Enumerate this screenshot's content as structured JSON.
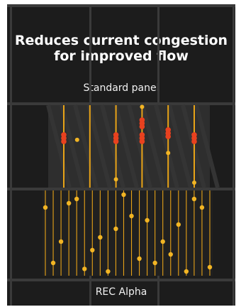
{
  "title": "Reduces current congestion for improved flow",
  "panels": [
    {
      "label": "Standard panel",
      "line_color": "#e8a317",
      "dot_color": "#f2b524",
      "hotspot_color": "#e8411f",
      "busbars": [
        {
          "dots": [
            {
              "t": 0.36,
              "hot": true
            },
            {
              "t": 0.4,
              "hot": true
            },
            {
              "t": 0.44,
              "hot": true
            }
          ]
        },
        {
          "dots": [
            {
              "t": 0.42,
              "hot": false
            }
          ]
        },
        {
          "dots": [
            {
              "t": 0.36,
              "hot": true
            },
            {
              "t": 0.4,
              "hot": true
            },
            {
              "t": 0.44,
              "hot": true
            },
            {
              "t": 0.9,
              "hot": false
            }
          ]
        },
        {
          "dots": [
            {
              "t": 0.02,
              "hot": false
            },
            {
              "t": 0.18,
              "hot": true
            },
            {
              "t": 0.22,
              "hot": true
            },
            {
              "t": 0.26,
              "hot": true
            },
            {
              "t": 0.36,
              "hot": true
            },
            {
              "t": 0.4,
              "hot": true
            },
            {
              "t": 0.44,
              "hot": true
            }
          ]
        },
        {
          "dots": [
            {
              "t": 0.3,
              "hot": true
            },
            {
              "t": 0.34,
              "hot": true
            },
            {
              "t": 0.38,
              "hot": true
            },
            {
              "t": 0.58,
              "hot": false
            }
          ]
        },
        {
          "dots": [
            {
              "t": 0.36,
              "hot": true
            },
            {
              "t": 0.4,
              "hot": true
            },
            {
              "t": 0.44,
              "hot": true
            },
            {
              "t": 0.94,
              "hot": false
            }
          ]
        }
      ]
    },
    {
      "label": "REC Alpha",
      "line_color": "#e8a317",
      "dot_color": "#f2b524",
      "wire_dots": [
        0.2,
        0.85,
        0.6,
        0.15,
        0.1,
        0.92,
        0.7,
        0.55,
        0.95,
        0.45,
        0.05,
        0.3,
        0.8,
        0.35,
        0.85,
        0.6,
        0.75,
        0.4,
        0.95,
        0.1,
        0.2,
        0.9
      ]
    }
  ]
}
